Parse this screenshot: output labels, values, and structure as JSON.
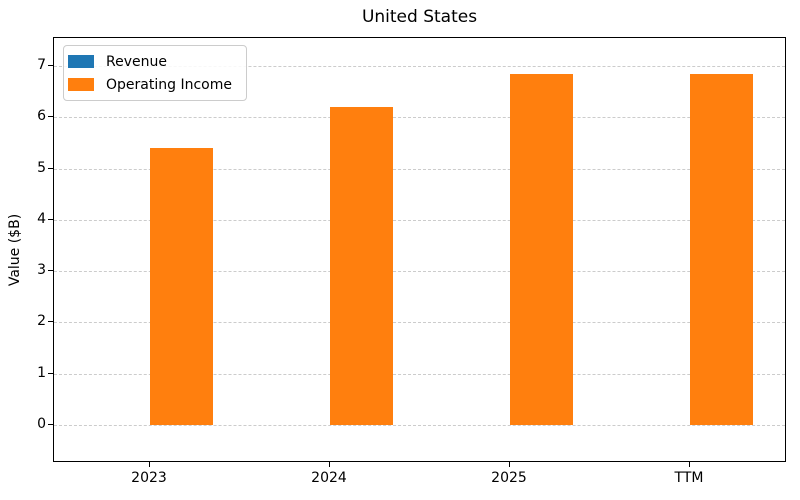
{
  "chart_data": {
    "type": "bar",
    "title": "United States",
    "xlabel": "",
    "ylabel": "Value ($B)",
    "categories": [
      "2023",
      "2024",
      "2025",
      "TTM"
    ],
    "series": [
      {
        "name": "Revenue",
        "color": "#1f77b4",
        "values": [
          0,
          0,
          0,
          0
        ]
      },
      {
        "name": "Operating Income",
        "color": "#ff7f0e",
        "values": [
          5.4,
          6.2,
          6.85,
          6.85
        ]
      }
    ],
    "yticks": [
      0,
      1,
      2,
      3,
      4,
      5,
      6,
      7
    ],
    "ylim": [
      -0.76,
      7.55
    ],
    "grid": "horizontal-dashed",
    "legend_position": "upper-left",
    "colors": {
      "grid": "#cccccc",
      "spine": "#000000",
      "text": "#000000",
      "background": "#ffffff"
    }
  }
}
